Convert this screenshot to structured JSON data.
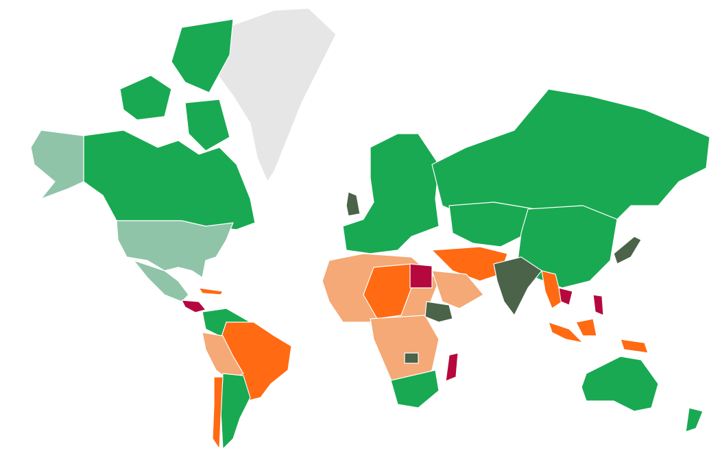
{
  "map": {
    "type": "choropleth",
    "projection": "mercator",
    "legend": "none",
    "category_colors": {
      "green": "#19a952",
      "light_green": "#8fc4a8",
      "dark_olive": "#4b6349",
      "orange": "#ff6a13",
      "light_orange": "#f4a976",
      "crimson": "#b5083e",
      "no_data": "#e6e6e6"
    }
  }
}
